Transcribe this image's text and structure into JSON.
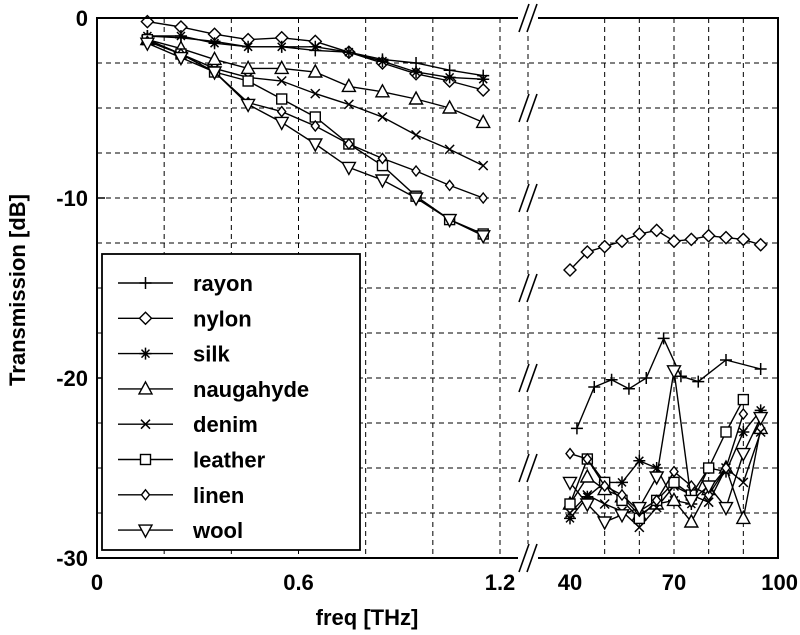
{
  "chart_data": {
    "type": "line",
    "xlabel": "freq [THz]",
    "ylabel": "Transmission [dB]",
    "ylim": [
      -30,
      0
    ],
    "y_ticks": [
      "0",
      "-10",
      "-20",
      "-30"
    ],
    "x_ticks": [
      "0",
      "0.6",
      "1.2",
      "40",
      "70",
      "100"
    ],
    "axis_break": "between 1.2 THz and 40 THz (broken x-axis)",
    "grid": true,
    "legend_position": "bottom-left",
    "panels": [
      {
        "xlim": [
          0,
          1.2
        ]
      },
      {
        "xlim": [
          40,
          100
        ]
      }
    ],
    "series": [
      {
        "name": "rayon",
        "marker": "plus",
        "low": [
          [
            0.15,
            -1.0
          ],
          [
            0.25,
            -1.1
          ],
          [
            0.35,
            -1.3
          ],
          [
            0.45,
            -1.6
          ],
          [
            0.55,
            -1.6
          ],
          [
            0.65,
            -1.8
          ],
          [
            0.75,
            -1.9
          ],
          [
            0.85,
            -2.3
          ],
          [
            0.95,
            -2.5
          ],
          [
            1.05,
            -2.9
          ],
          [
            1.15,
            -3.2
          ]
        ],
        "high": [
          [
            42,
            -22.8
          ],
          [
            47,
            -20.5
          ],
          [
            52,
            -20.1
          ],
          [
            57,
            -20.6
          ],
          [
            62,
            -20.0
          ],
          [
            67,
            -17.8
          ],
          [
            72,
            -19.9
          ],
          [
            77,
            -20.2
          ],
          [
            85,
            -19.0
          ],
          [
            95,
            -19.5
          ]
        ]
      },
      {
        "name": "nylon",
        "marker": "diamond",
        "low": [
          [
            0.15,
            -0.2
          ],
          [
            0.25,
            -0.5
          ],
          [
            0.35,
            -0.9
          ],
          [
            0.45,
            -1.2
          ],
          [
            0.55,
            -1.1
          ],
          [
            0.65,
            -1.3
          ],
          [
            0.75,
            -1.9
          ],
          [
            0.85,
            -2.5
          ],
          [
            0.95,
            -3.1
          ],
          [
            1.05,
            -3.5
          ],
          [
            1.15,
            -4.0
          ]
        ],
        "high": [
          [
            40,
            -14.0
          ],
          [
            45,
            -13.0
          ],
          [
            50,
            -12.7
          ],
          [
            55,
            -12.4
          ],
          [
            60,
            -12.0
          ],
          [
            65,
            -11.8
          ],
          [
            70,
            -12.4
          ],
          [
            75,
            -12.3
          ],
          [
            80,
            -12.1
          ],
          [
            85,
            -12.2
          ],
          [
            90,
            -12.3
          ],
          [
            95,
            -12.6
          ]
        ]
      },
      {
        "name": "silk",
        "marker": "star",
        "low": [
          [
            0.15,
            -1.0
          ],
          [
            0.25,
            -1.0
          ],
          [
            0.35,
            -1.4
          ],
          [
            0.45,
            -1.6
          ],
          [
            0.55,
            -1.6
          ],
          [
            0.65,
            -1.6
          ],
          [
            0.75,
            -1.9
          ],
          [
            0.85,
            -2.4
          ],
          [
            0.95,
            -3.0
          ],
          [
            1.05,
            -3.3
          ],
          [
            1.15,
            -3.4
          ]
        ],
        "high": [
          [
            40,
            -27.8
          ],
          [
            45,
            -26.6
          ],
          [
            50,
            -25.8
          ],
          [
            55,
            -25.8
          ],
          [
            60,
            -24.6
          ],
          [
            65,
            -25.0
          ],
          [
            70,
            -26.8
          ],
          [
            75,
            -27.0
          ],
          [
            80,
            -25.0
          ],
          [
            85,
            -25.2
          ],
          [
            90,
            -23.0
          ],
          [
            95,
            -21.8
          ]
        ]
      },
      {
        "name": "naugahyde",
        "marker": "triangle-up",
        "low": [
          [
            0.15,
            -1.2
          ],
          [
            0.25,
            -1.7
          ],
          [
            0.35,
            -2.3
          ],
          [
            0.45,
            -2.8
          ],
          [
            0.55,
            -2.8
          ],
          [
            0.65,
            -3.0
          ],
          [
            0.75,
            -3.8
          ],
          [
            0.85,
            -4.1
          ],
          [
            0.95,
            -4.5
          ],
          [
            1.05,
            -5.0
          ],
          [
            1.15,
            -5.8
          ]
        ],
        "high": [
          [
            40,
            -27.0
          ],
          [
            45,
            -25.5
          ],
          [
            50,
            -26.2
          ],
          [
            55,
            -26.6
          ],
          [
            60,
            -27.6
          ],
          [
            65,
            -27.0
          ],
          [
            70,
            -26.8
          ],
          [
            75,
            -28.0
          ],
          [
            80,
            -26.2
          ],
          [
            85,
            -25.0
          ],
          [
            90,
            -27.8
          ],
          [
            95,
            -22.8
          ]
        ]
      },
      {
        "name": "denim",
        "marker": "x",
        "low": [
          [
            0.15,
            -1.2
          ],
          [
            0.25,
            -2.0
          ],
          [
            0.35,
            -2.8
          ],
          [
            0.45,
            -3.3
          ],
          [
            0.55,
            -3.5
          ],
          [
            0.65,
            -4.2
          ],
          [
            0.75,
            -4.8
          ],
          [
            0.85,
            -5.5
          ],
          [
            0.95,
            -6.5
          ],
          [
            1.05,
            -7.3
          ],
          [
            1.15,
            -8.2
          ]
        ],
        "high": [
          [
            40,
            -27.5
          ],
          [
            45,
            -26.5
          ],
          [
            50,
            -27.0
          ],
          [
            55,
            -27.4
          ],
          [
            60,
            -28.3
          ],
          [
            65,
            -27.2
          ],
          [
            70,
            -26.0
          ],
          [
            75,
            -26.5
          ],
          [
            80,
            -26.9
          ],
          [
            85,
            -25.0
          ],
          [
            90,
            -25.8
          ],
          [
            95,
            -23.0
          ]
        ]
      },
      {
        "name": "leather",
        "marker": "square",
        "low": [
          [
            0.15,
            -1.2
          ],
          [
            0.25,
            -2.0
          ],
          [
            0.35,
            -3.0
          ],
          [
            0.45,
            -3.5
          ],
          [
            0.55,
            -4.5
          ],
          [
            0.65,
            -5.5
          ],
          [
            0.75,
            -7.0
          ],
          [
            0.85,
            -8.2
          ],
          [
            0.95,
            -9.9
          ],
          [
            1.05,
            -11.2
          ],
          [
            1.15,
            -12.0
          ]
        ],
        "high": [
          [
            40,
            -27.0
          ],
          [
            45,
            -24.5
          ],
          [
            50,
            -25.8
          ],
          [
            55,
            -26.8
          ],
          [
            60,
            -27.8
          ],
          [
            65,
            -26.8
          ],
          [
            70,
            -25.8
          ],
          [
            75,
            -26.5
          ],
          [
            80,
            -25.0
          ],
          [
            85,
            -23.0
          ],
          [
            90,
            -21.2
          ]
        ]
      },
      {
        "name": "linen",
        "marker": "diamond-small",
        "low": [
          [
            0.15,
            -1.3
          ],
          [
            0.25,
            -2.0
          ],
          [
            0.35,
            -3.0
          ],
          [
            0.45,
            -4.7
          ],
          [
            0.55,
            -5.2
          ],
          [
            0.65,
            -6.0
          ],
          [
            0.75,
            -7.0
          ],
          [
            0.85,
            -7.8
          ],
          [
            0.95,
            -8.5
          ],
          [
            1.05,
            -9.3
          ],
          [
            1.15,
            -10.0
          ]
        ],
        "high": [
          [
            40,
            -24.2
          ],
          [
            45,
            -24.5
          ],
          [
            50,
            -26.0
          ],
          [
            55,
            -26.5
          ],
          [
            60,
            -27.4
          ],
          [
            65,
            -26.8
          ],
          [
            70,
            -25.2
          ],
          [
            75,
            -26.0
          ],
          [
            80,
            -26.5
          ],
          [
            85,
            -25.0
          ],
          [
            90,
            -22.0
          ]
        ]
      },
      {
        "name": "wool",
        "marker": "triangle-down",
        "low": [
          [
            0.15,
            -1.4
          ],
          [
            0.25,
            -2.2
          ],
          [
            0.35,
            -3.0
          ],
          [
            0.45,
            -4.8
          ],
          [
            0.55,
            -5.8
          ],
          [
            0.65,
            -7.0
          ],
          [
            0.75,
            -8.3
          ],
          [
            0.85,
            -9.0
          ],
          [
            0.95,
            -10.0
          ],
          [
            1.05,
            -11.2
          ],
          [
            1.15,
            -12.1
          ]
        ],
        "high": [
          [
            40,
            -25.8
          ],
          [
            45,
            -27.0
          ],
          [
            50,
            -28.0
          ],
          [
            55,
            -27.6
          ],
          [
            60,
            -27.2
          ],
          [
            65,
            -25.5
          ],
          [
            70,
            -19.6
          ],
          [
            75,
            -26.8
          ],
          [
            80,
            -26.0
          ],
          [
            85,
            -27.2
          ],
          [
            90,
            -24.2
          ],
          [
            95,
            -22.2
          ]
        ]
      }
    ]
  }
}
